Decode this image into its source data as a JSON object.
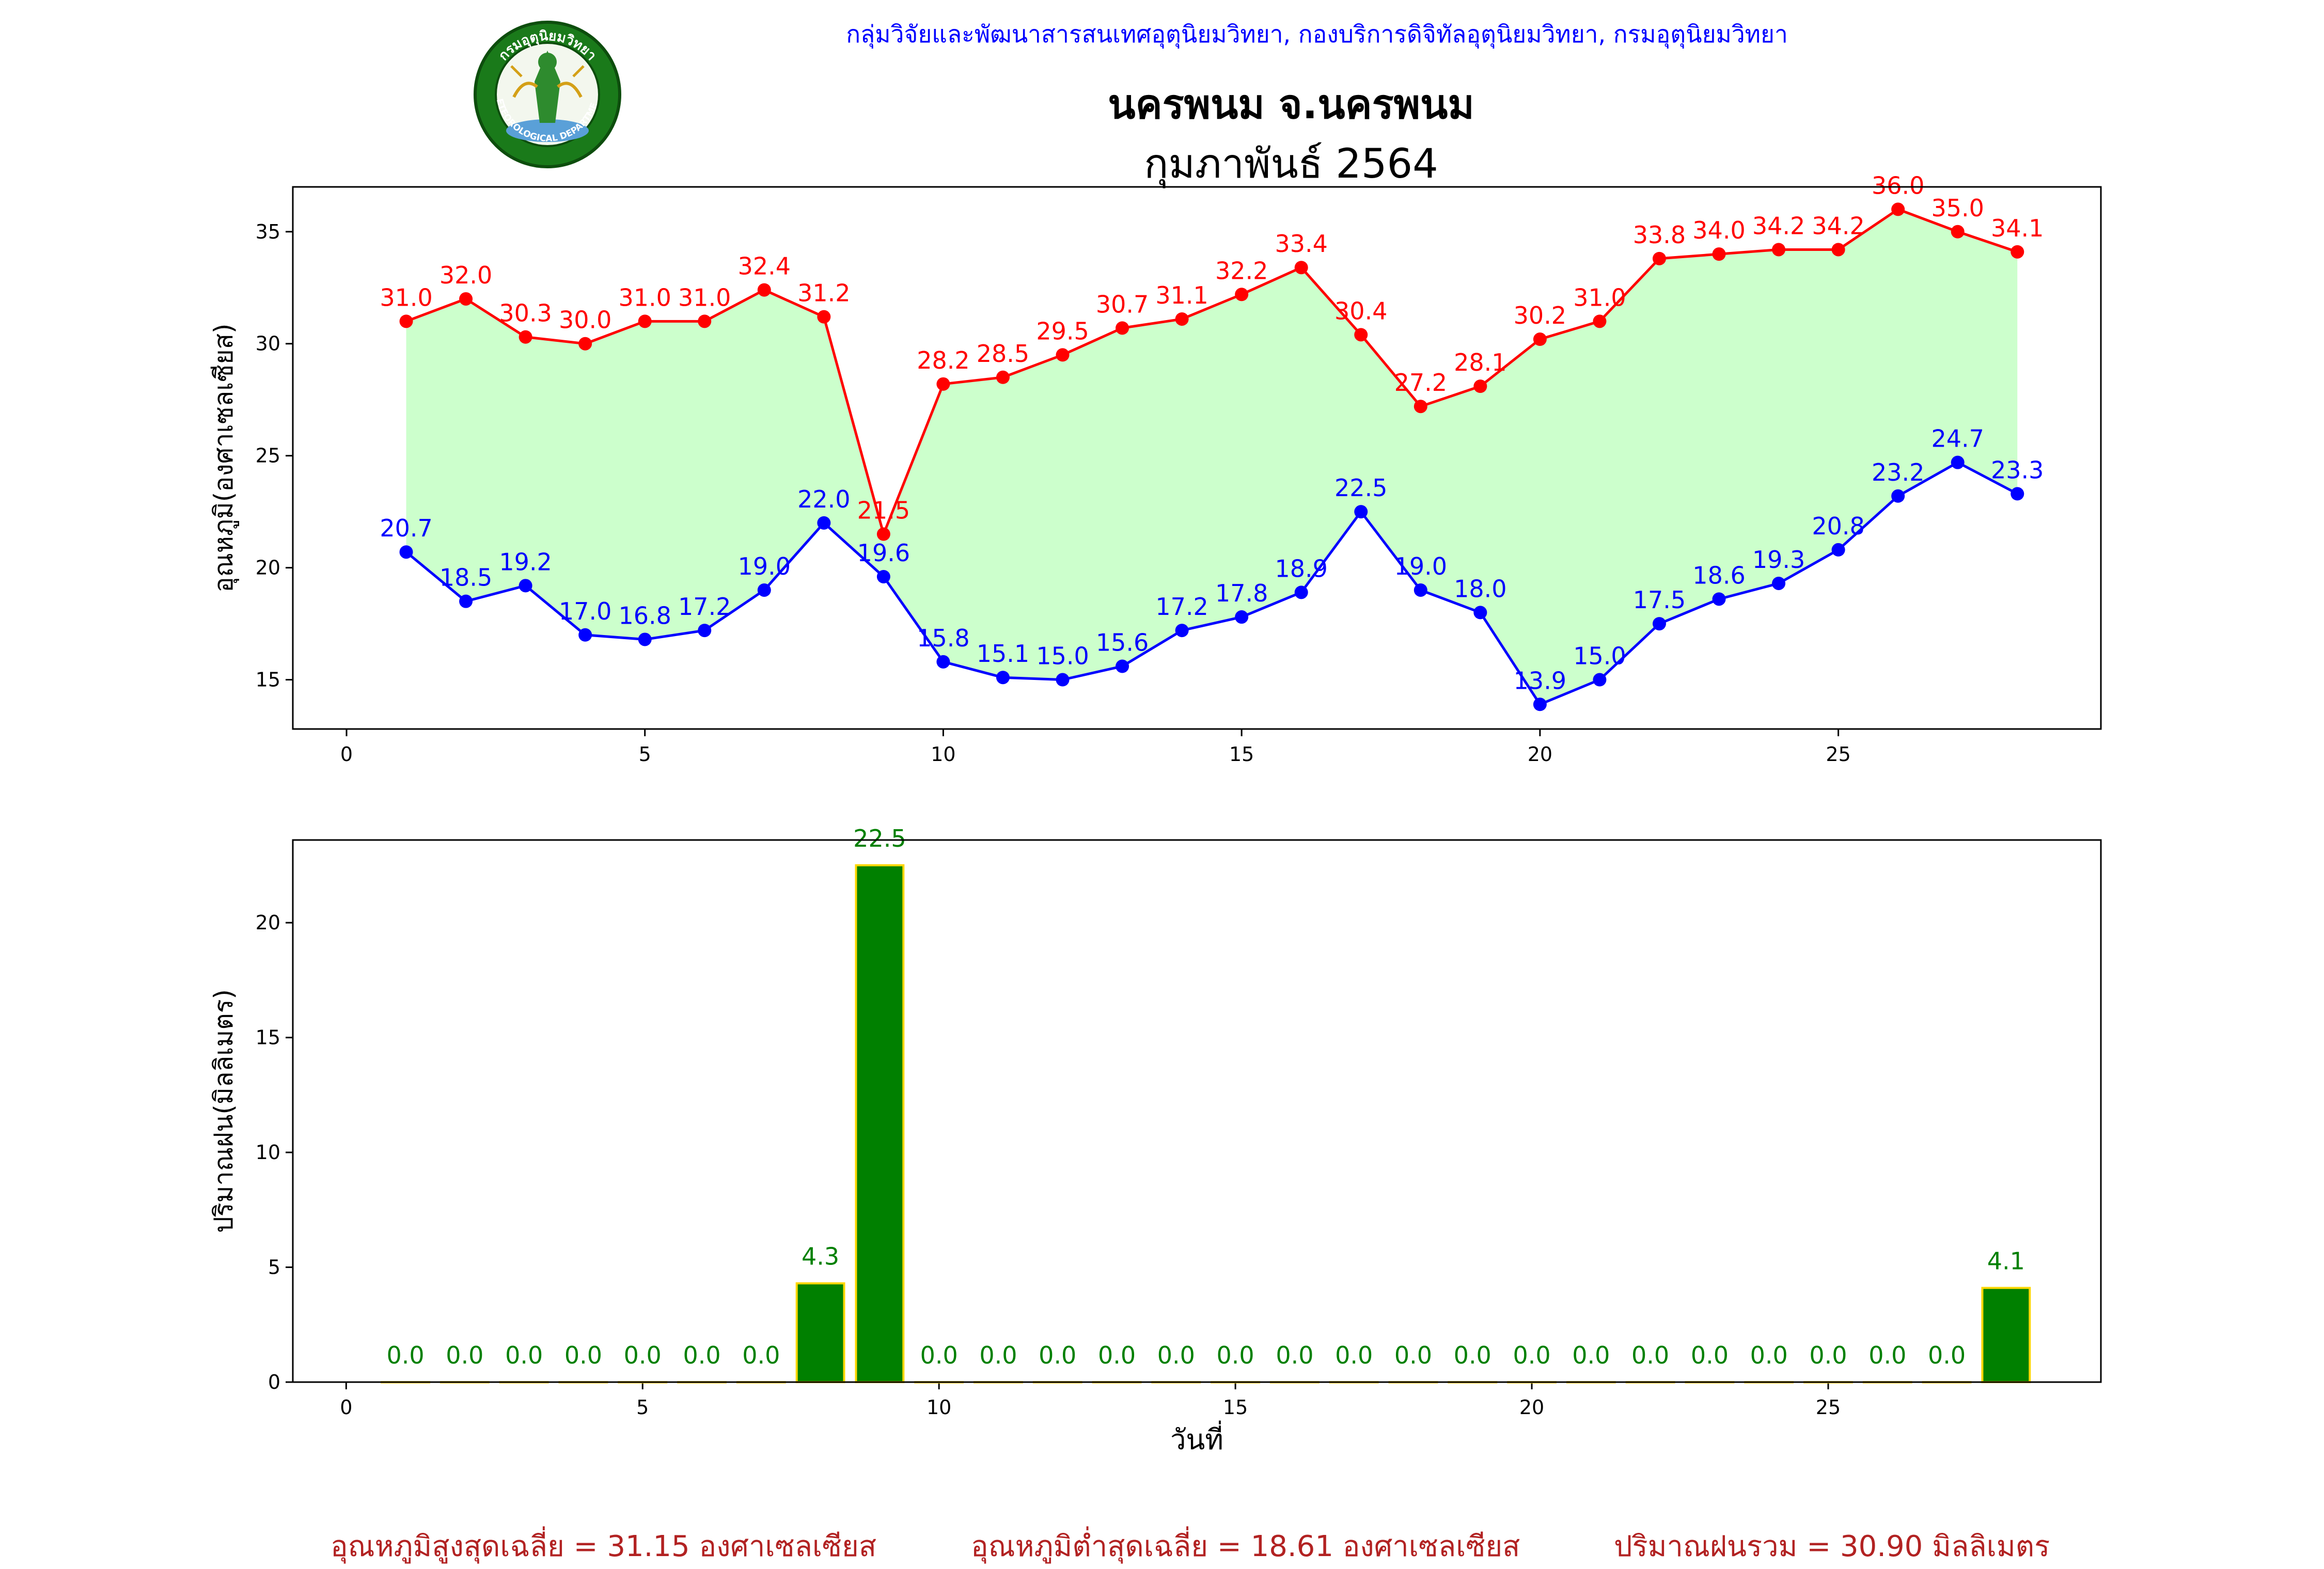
{
  "header": {
    "org_line": "กลุ่มวิจัยและพัฒนาสารสนเทศอุตุนิยมวิทยา, กองบริการดิจิทัลอุตุนิยมวิทยา, กรมอุตุนิยมวิทยา",
    "station": "นครพนม จ.นครพนม",
    "month": "กุมภาพันธ์ 2564",
    "logo_icon": "meteorological-department-seal-icon",
    "logo_text_top": "กรมอุตุนิยมวิทยา",
    "logo_text_bottom": "METEOROLOGICAL DEPARTMENT"
  },
  "summary": {
    "avg_max": "อุณหภูมิสูงสุดเฉลี่ย = 31.15 องศาเซลเซียส",
    "avg_min": "อุณหภูมิต่ำสุดเฉลี่ย = 18.61 องศาเซลเซียส",
    "total_rain": "ปริมาณฝนรวม = 30.90 มิลลิเมตร"
  },
  "chart_data": [
    {
      "type": "line",
      "ylabel": "อุณหภูมิ(องศาเซลเซียส)",
      "xlabel": "",
      "x": [
        1,
        2,
        3,
        4,
        5,
        6,
        7,
        8,
        9,
        10,
        11,
        12,
        13,
        14,
        15,
        16,
        17,
        18,
        19,
        20,
        21,
        22,
        23,
        24,
        25,
        26,
        27,
        28
      ],
      "xlim": [
        -0.9,
        29.4
      ],
      "ylim": [
        12.8,
        37.0
      ],
      "xticks": [
        0,
        5,
        10,
        15,
        20,
        25
      ],
      "yticks": [
        15,
        20,
        25,
        30,
        35
      ],
      "fill_between": true,
      "colors": {
        "max": "#ff0000",
        "min": "#0000ff",
        "fill": "#ccffcc"
      },
      "series": [
        {
          "key": "max",
          "values": [
            31.0,
            32.0,
            30.3,
            30.0,
            31.0,
            31.0,
            32.4,
            31.2,
            21.5,
            28.2,
            28.5,
            29.5,
            30.7,
            31.1,
            32.2,
            33.4,
            30.4,
            27.2,
            28.1,
            30.2,
            31.0,
            33.8,
            34.0,
            34.2,
            34.2,
            36.0,
            35.0,
            34.1
          ]
        },
        {
          "key": "min",
          "values": [
            20.7,
            18.5,
            19.2,
            17.0,
            16.8,
            17.2,
            19.0,
            22.0,
            19.6,
            15.8,
            15.1,
            15.0,
            15.6,
            17.2,
            17.8,
            18.9,
            22.5,
            19.0,
            18.0,
            13.9,
            15.0,
            17.5,
            18.6,
            19.3,
            20.8,
            23.2,
            24.7,
            23.3
          ]
        }
      ]
    },
    {
      "type": "bar",
      "ylabel": "ปริมาณฝน(มิลลิเมตร)",
      "xlabel": "วันที่",
      "x": [
        1,
        2,
        3,
        4,
        5,
        6,
        7,
        8,
        9,
        10,
        11,
        12,
        13,
        14,
        15,
        16,
        17,
        18,
        19,
        20,
        21,
        22,
        23,
        24,
        25,
        26,
        27,
        28
      ],
      "values": [
        0.0,
        0.0,
        0.0,
        0.0,
        0.0,
        0.0,
        0.0,
        4.3,
        22.5,
        0.0,
        0.0,
        0.0,
        0.0,
        0.0,
        0.0,
        0.0,
        0.0,
        0.0,
        0.0,
        0.0,
        0.0,
        0.0,
        0.0,
        0.0,
        0.0,
        0.0,
        0.0,
        4.1
      ],
      "xlim": [
        -0.9,
        29.6
      ],
      "ylim": [
        0,
        23.6
      ],
      "xticks": [
        0,
        5,
        10,
        15,
        20,
        25
      ],
      "yticks": [
        0,
        5,
        10,
        15,
        20
      ],
      "colors": {
        "bar": "#008000",
        "edge": "#ffd700",
        "label": "#008000"
      }
    }
  ]
}
